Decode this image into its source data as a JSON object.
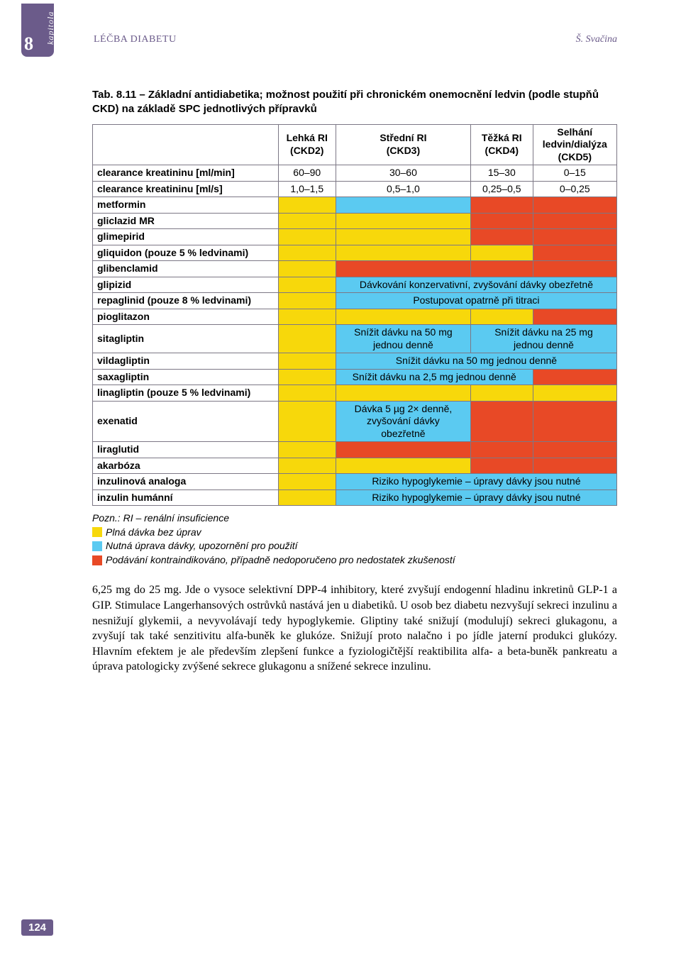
{
  "chapter": {
    "label": "kapitola",
    "number": "8"
  },
  "header": {
    "left": "LÉČBA DIABETU",
    "right": "Š. Svačina"
  },
  "caption": "Tab. 8.11 – Základní antidiabetika; možnost použití při chronickém onemocnění ledvin (podle stupňů CKD) na základě SPC jednotlivých přípravků",
  "colors": {
    "yellow": "#f7d80b",
    "blue": "#5bcaf1",
    "red": "#e84926",
    "accent": "#6b5b8a",
    "border": "#7c7785"
  },
  "table": {
    "columns": [
      "Lehká RI (CKD2)",
      "Střední RI (CKD3)",
      "Těžká RI (CKD4)",
      "Selhání ledvin/dialýza (CKD5)"
    ],
    "columns_l1": [
      "Lehká RI",
      "Střední RI",
      "Těžká RI",
      "Selhání"
    ],
    "columns_l2": [
      "(CKD2)",
      "(CKD3)",
      "(CKD4)",
      "ledvin/dialýza"
    ],
    "columns_l3": [
      "",
      "",
      "",
      "(CKD5)"
    ],
    "clearance_mlmin": {
      "label": "clearance kreatininu [ml/min]",
      "v": [
        "60–90",
        "30–60",
        "15–30",
        "0–15"
      ]
    },
    "clearance_mls": {
      "label": "clearance kreatininu [ml/s]",
      "v": [
        "1,0–1,5",
        "0,5–1,0",
        "0,25–0,5",
        "0–0,25"
      ]
    },
    "metformin": "metformin",
    "gliclazid": "gliclazid MR",
    "glimepirid": "glimepirid",
    "gliquidon": "gliquidon (pouze 5 % ledvinami)",
    "glibenclamid": "glibenclamid",
    "glipizid": {
      "label": "glipizid",
      "note": "Dávkování konzervativní, zvyšování dávky obezřetně"
    },
    "repaglinid": {
      "label": "repaglinid (pouze 8 % ledvinami)",
      "note": "Postupovat opatrně při titraci"
    },
    "pioglitazon": "pioglitazon",
    "sitagliptin": {
      "label": "sitagliptin",
      "note50_l1": "Snížit dávku na 50 mg",
      "note50_l2": "jednou denně",
      "note25_l1": "Snížit dávku na 25 mg",
      "note25_l2": "jednou denně"
    },
    "vildagliptin": {
      "label": "vildagliptin",
      "note": "Snížit dávku na 50 mg jednou denně"
    },
    "saxagliptin": {
      "label": "saxagliptin",
      "note": "Snížit dávku na 2,5 mg jednou denně"
    },
    "linagliptin": "linagliptin (pouze 5 % ledvinami)",
    "exenatid": {
      "label": "exenatid",
      "note_l1": "Dávka 5 µg 2× denně,",
      "note_l2": "zvyšování dávky",
      "note_l3": "obezřetně"
    },
    "liraglutid": "liraglutid",
    "akarboza": "akarbóza",
    "inz_analoga": {
      "label": "inzulinová analoga",
      "note": "Riziko hypoglykemie – úpravy dávky jsou nutné"
    },
    "inz_humanni": {
      "label": "inzulin humánní",
      "note": "Riziko hypoglykemie – úpravy dávky jsou nutné"
    }
  },
  "legend": {
    "note": "Pozn.: RI – renální insuficience",
    "yellow": "Plná dávka bez úprav",
    "blue": "Nutná úprava dávky, upozornění pro použití",
    "red": "Podávání kontraindikováno, případně nedoporučeno pro nedostatek zkušeností"
  },
  "body": "6,25 mg do 25 mg. Jde o vysoce selektivní DPP-4 inhibitory, které zvyšují endogenní hladinu inkretinů GLP-1 a GIP. Stimulace Langerhansových ostrůvků nastává jen u diabetiků. U osob bez diabetu nezvyšují sekreci inzulinu a nesnižují glykemii, a nevyvolávají tedy hypoglykemie. Gliptiny také snižují (modulují) sekreci glukagonu, a zvyšují tak také senzitivitu alfa-buněk ke glukóze. Snižují proto nalačno i po jídle jaterní produkci glukózy. Hlavním efektem je ale především zlepšení funkce a fyziologičtější reaktibilita alfa- a beta-buněk pankreatu a úprava patologicky zvýšené sekrece glukagonu a snížené sekrece inzulinu.",
  "page_number": "124"
}
